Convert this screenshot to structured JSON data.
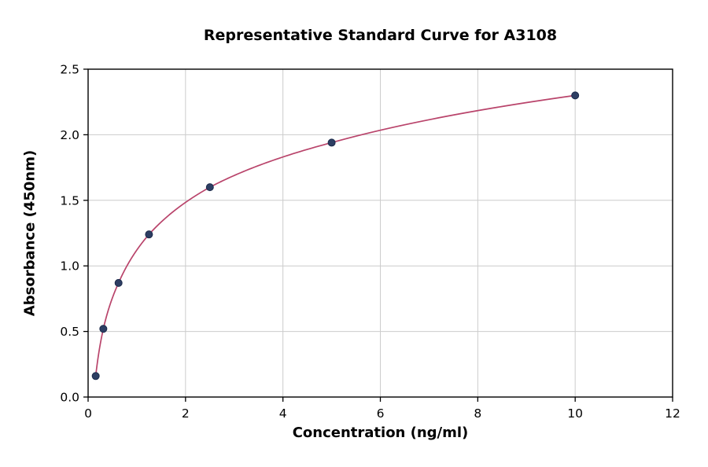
{
  "chart_data": {
    "type": "line",
    "title": "Representative Standard Curve for A3108",
    "xlabel": "Concentration (ng/ml)",
    "ylabel": "Absorbance (450nm)",
    "x": [
      0.156,
      0.3125,
      0.625,
      1.25,
      2.5,
      5,
      10
    ],
    "y": [
      0.16,
      0.52,
      0.87,
      1.24,
      1.6,
      1.94,
      2.3
    ],
    "xlim": [
      0,
      12
    ],
    "ylim": [
      0,
      2.5
    ],
    "xticks": [
      0,
      2,
      4,
      6,
      8,
      10,
      12
    ],
    "xtick_labels": [
      "0",
      "2",
      "4",
      "6",
      "8",
      "10",
      "12"
    ],
    "yticks": [
      0,
      0.5,
      1.0,
      1.5,
      2.0,
      2.5
    ],
    "ytick_labels": [
      "0.0",
      "0.5",
      "1.0",
      "1.5",
      "2.0",
      "2.5"
    ],
    "grid": true,
    "legend": "none",
    "colors": {
      "line": "#b9446b",
      "point_fill": "#2d3e63",
      "point_edge": "#1c2a4a",
      "grid": "#cccccc",
      "frame": "#000000",
      "background": "#ffffff"
    }
  }
}
